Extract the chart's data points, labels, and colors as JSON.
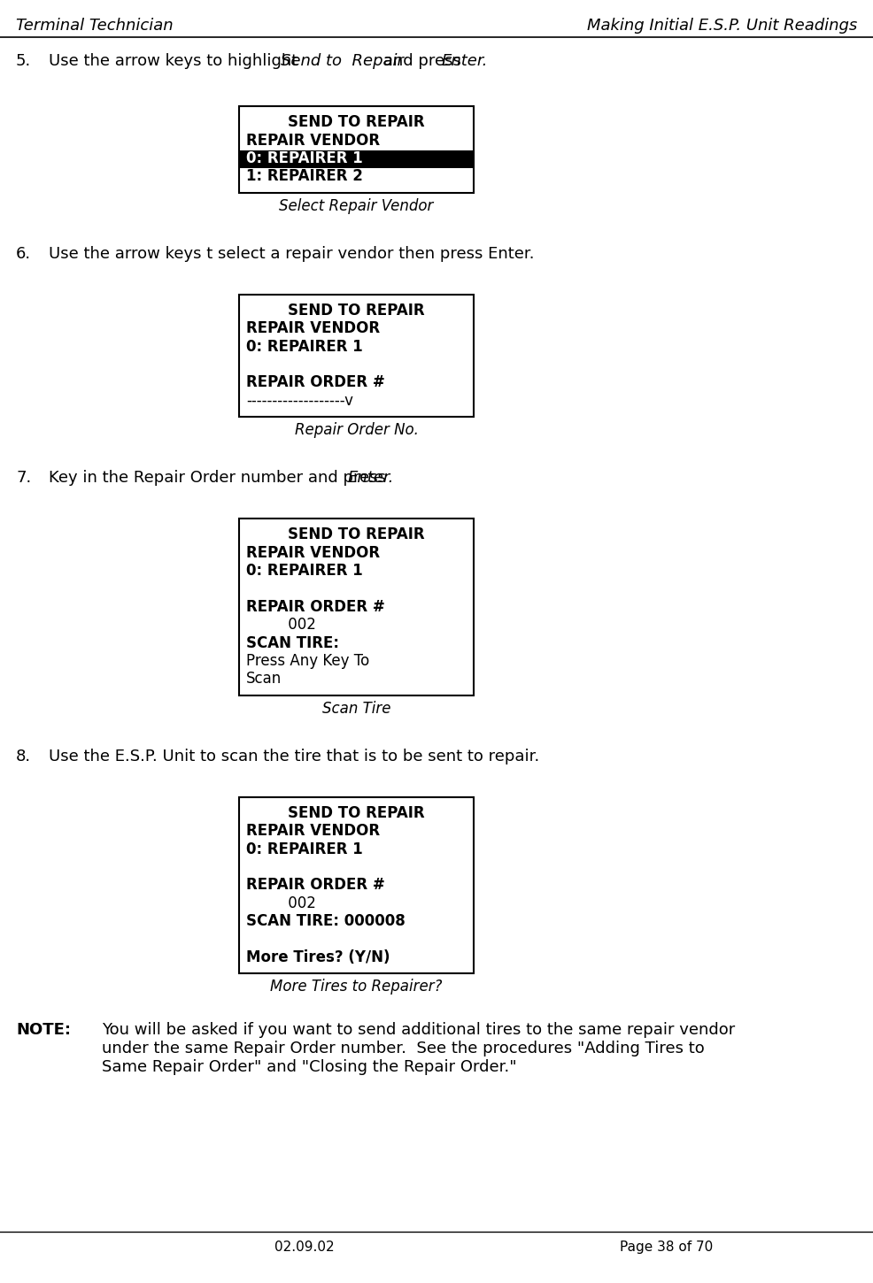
{
  "title_left": "Terminal Technician",
  "title_right": "Making Initial E.S.P. Unit Readings",
  "footer_left": "02.09.02",
  "footer_right": "Page 38 of 70",
  "background_color": "#ffffff",
  "box1_lines": [
    {
      "text": "SEND TO REPAIR",
      "bold": true,
      "center": true,
      "highlight": false
    },
    {
      "text": "REPAIR VENDOR",
      "bold": true,
      "center": false,
      "highlight": false
    },
    {
      "text": "0: REPAIRER 1",
      "bold": true,
      "center": false,
      "highlight": true
    },
    {
      "text": "1: REPAIRER 2",
      "bold": true,
      "center": false,
      "highlight": false
    }
  ],
  "box1_caption": "Select Repair Vendor",
  "box2_lines": [
    {
      "text": "SEND TO REPAIR",
      "bold": true,
      "center": true,
      "highlight": false
    },
    {
      "text": "REPAIR VENDOR",
      "bold": true,
      "center": false,
      "highlight": false
    },
    {
      "text": "0: REPAIRER 1",
      "bold": true,
      "center": false,
      "highlight": false
    },
    {
      "text": "",
      "bold": false,
      "center": false,
      "highlight": false
    },
    {
      "text": "REPAIR ORDER #",
      "bold": true,
      "center": false,
      "highlight": false
    },
    {
      "text": "-------------------v",
      "bold": false,
      "center": false,
      "highlight": false
    }
  ],
  "box2_caption": "Repair Order No.",
  "box3_lines": [
    {
      "text": "SEND TO REPAIR",
      "bold": true,
      "center": true,
      "highlight": false
    },
    {
      "text": "REPAIR VENDOR",
      "bold": true,
      "center": false,
      "highlight": false
    },
    {
      "text": "0: REPAIRER 1",
      "bold": true,
      "center": false,
      "highlight": false
    },
    {
      "text": "",
      "bold": false,
      "center": false,
      "highlight": false
    },
    {
      "text": "REPAIR ORDER #",
      "bold": true,
      "center": false,
      "highlight": false
    },
    {
      "text": "         002",
      "bold": false,
      "center": false,
      "highlight": false
    },
    {
      "text": "SCAN TIRE:",
      "bold": true,
      "center": false,
      "highlight": false
    },
    {
      "text": "Press Any Key To",
      "bold": false,
      "center": false,
      "highlight": false
    },
    {
      "text": "Scan",
      "bold": false,
      "center": false,
      "highlight": false
    }
  ],
  "box3_caption": "Scan Tire",
  "box4_lines": [
    {
      "text": "SEND TO REPAIR",
      "bold": true,
      "center": true,
      "highlight": false
    },
    {
      "text": "REPAIR VENDOR",
      "bold": true,
      "center": false,
      "highlight": false
    },
    {
      "text": "0: REPAIRER 1",
      "bold": true,
      "center": false,
      "highlight": false
    },
    {
      "text": "",
      "bold": false,
      "center": false,
      "highlight": false
    },
    {
      "text": "REPAIR ORDER #",
      "bold": true,
      "center": false,
      "highlight": false
    },
    {
      "text": "         002",
      "bold": false,
      "center": false,
      "highlight": false
    },
    {
      "text": "SCAN TIRE: 000008",
      "bold": true,
      "center": false,
      "highlight": false
    },
    {
      "text": "",
      "bold": false,
      "center": false,
      "highlight": false
    },
    {
      "text": "More Tires? (Y/N)",
      "bold": true,
      "center": false,
      "highlight": false
    }
  ],
  "box4_caption": "More Tires to Repairer?",
  "note_label": "NOTE:",
  "note_line1": "You will be asked if you want to send additional tires to the same repair vendor",
  "note_line2": "under the same Repair Order number.  See the procedures \"Adding Tires to",
  "note_line3": "Same Repair Order\" and \"Closing the Repair Order.\""
}
